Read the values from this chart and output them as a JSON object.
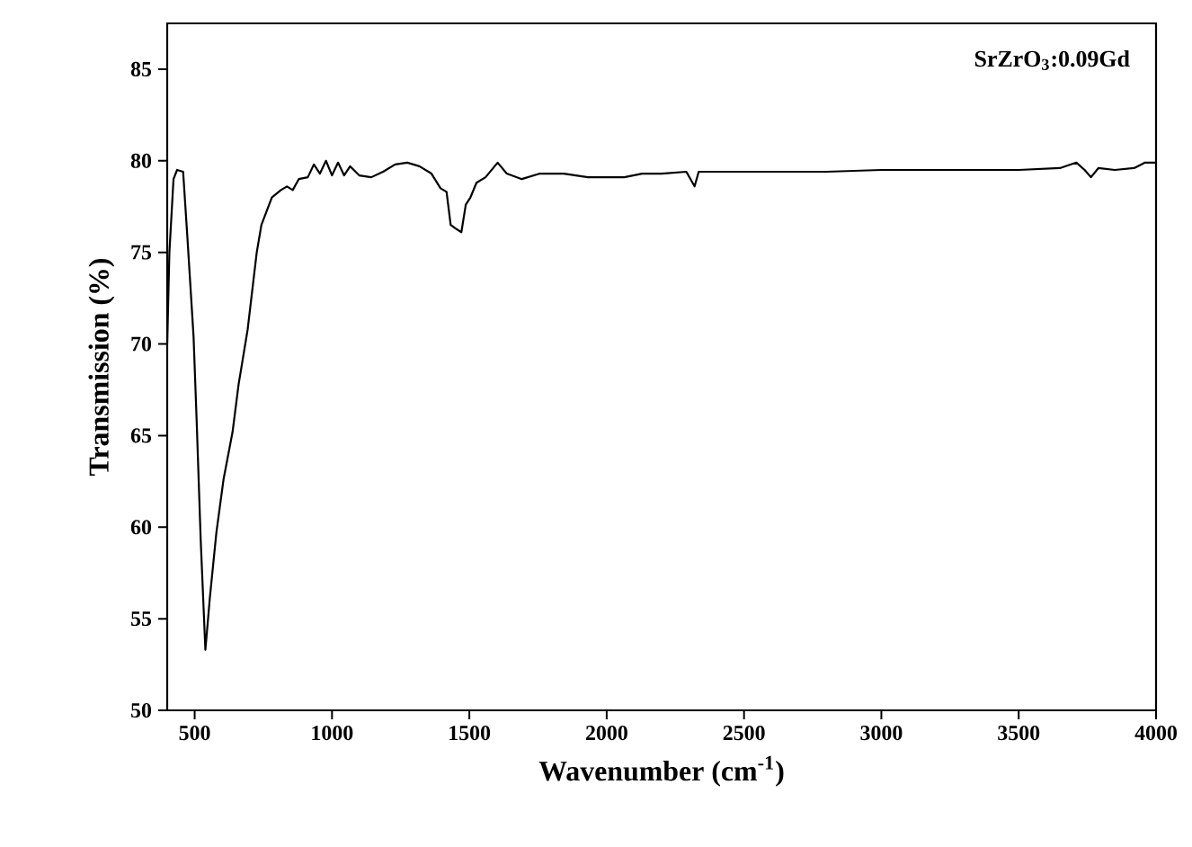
{
  "chart_data": {
    "type": "line",
    "xlabel": "Wavenumber (cm$^{-1}$)",
    "ylabel": "Transmission (%)",
    "annotations": [
      "SrZrO$_{3}$:0.09Gd"
    ],
    "xlim": [
      400,
      4000
    ],
    "ylim": [
      50,
      87.5
    ],
    "xticks": [
      500,
      1000,
      1500,
      2000,
      2500,
      3000,
      3500,
      4000
    ],
    "yticks": [
      50,
      55,
      60,
      65,
      70,
      75,
      80,
      85
    ],
    "grid": false,
    "marker": "none",
    "line_style": "solid",
    "series": [
      {
        "color": "#000000",
        "x": [
          400,
          408,
          423,
          436,
          458,
          474,
          496,
          507,
          522,
          539,
          555,
          579,
          605,
          638,
          660,
          693,
          726,
          743,
          781,
          814,
          836,
          857,
          879,
          912,
          934,
          956,
          978,
          1000,
          1022,
          1044,
          1066,
          1099,
          1143,
          1186,
          1230,
          1274,
          1318,
          1362,
          1395,
          1417,
          1432,
          1450,
          1471,
          1487,
          1504,
          1526,
          1559,
          1603,
          1636,
          1691,
          1757,
          1844,
          1932,
          2064,
          2129,
          2200,
          2290,
          2320,
          2335,
          2500,
          2800,
          3000,
          3300,
          3500,
          3650,
          3710,
          3740,
          3763,
          3790,
          3850,
          3920,
          3960,
          4000
        ],
        "values": [
          70.0,
          75.0,
          79.0,
          79.5,
          79.4,
          75.7,
          70.4,
          65.9,
          59.3,
          53.3,
          56.1,
          59.7,
          62.6,
          65.2,
          67.8,
          70.8,
          75.0,
          76.5,
          78.0,
          78.4,
          78.6,
          78.4,
          79.0,
          79.1,
          79.8,
          79.3,
          80.0,
          79.2,
          79.9,
          79.2,
          79.7,
          79.2,
          79.1,
          79.4,
          79.8,
          79.9,
          79.7,
          79.3,
          78.5,
          78.3,
          76.5,
          76.3,
          76.1,
          77.6,
          78.0,
          78.8,
          79.1,
          79.9,
          79.3,
          79.0,
          79.3,
          79.3,
          79.1,
          79.1,
          79.3,
          79.3,
          79.4,
          78.6,
          79.4,
          79.4,
          79.4,
          79.5,
          79.5,
          79.5,
          79.6,
          79.9,
          79.5,
          79.1,
          79.6,
          79.5,
          79.6,
          79.9,
          79.9
        ]
      }
    ]
  }
}
